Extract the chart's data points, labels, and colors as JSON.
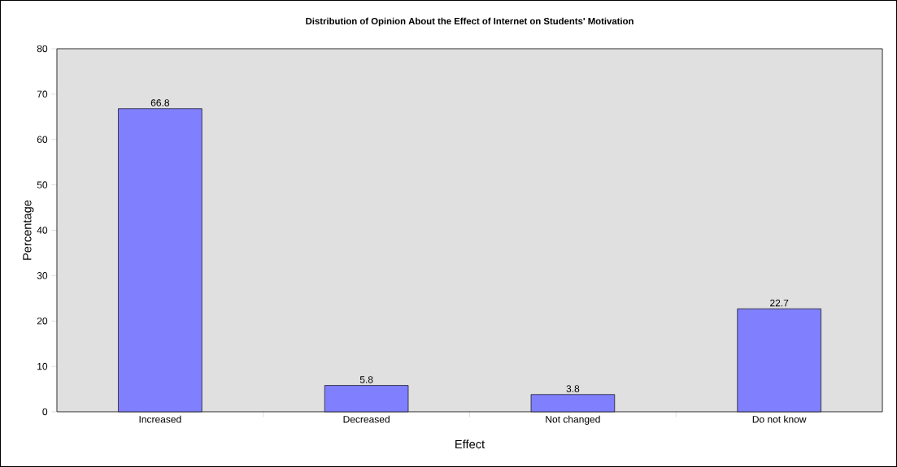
{
  "chart_data": {
    "type": "bar",
    "title": "Distribution of Opinion About the Effect of Internet on Students' Motivation",
    "xlabel": "Effect",
    "ylabel": "Percentage",
    "categories": [
      "Increased",
      "Decreased",
      "Not changed",
      "Do not know"
    ],
    "values": [
      66.8,
      5.8,
      3.8,
      22.7
    ],
    "color": "#8080ff",
    "ylim": [
      0,
      80
    ],
    "yticks": [
      0,
      10,
      20,
      30,
      40,
      50,
      60,
      70,
      80
    ],
    "data_labels": true,
    "grid": false
  }
}
